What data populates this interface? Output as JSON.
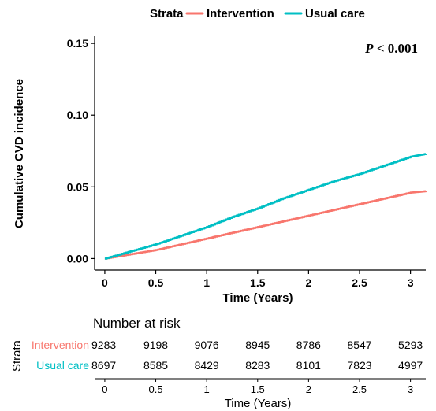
{
  "legend": {
    "title": "Strata",
    "items": [
      {
        "label": "Intervention",
        "color": "#F8766D"
      },
      {
        "label": "Usual care",
        "color": "#00BFC4"
      }
    ]
  },
  "chart_data": {
    "type": "line",
    "title": "",
    "xlabel": "Time (Years)",
    "ylabel": "Cumulative CVD incidence",
    "xlim": [
      -0.1,
      3.15
    ],
    "ylim": [
      -0.008,
      0.155
    ],
    "xticks": [
      0,
      0.5,
      1,
      1.5,
      2,
      2.5,
      3
    ],
    "xtick_labels": [
      "0",
      "0.5",
      "1",
      "1.5",
      "2",
      "2.5",
      "3"
    ],
    "yticks": [
      0,
      0.05,
      0.1,
      0.15
    ],
    "ytick_labels": [
      "0.00",
      "0.05",
      "0.10",
      "0.15"
    ],
    "annotation": "P < 0.001",
    "grid": false,
    "legend_position": "top",
    "series": [
      {
        "name": "Intervention",
        "color": "#F8766D",
        "x": [
          0,
          0.25,
          0.5,
          0.75,
          1,
          1.25,
          1.5,
          1.75,
          2,
          2.25,
          2.5,
          2.75,
          3,
          3.15
        ],
        "y": [
          0,
          0.003,
          0.006,
          0.01,
          0.014,
          0.018,
          0.022,
          0.026,
          0.03,
          0.034,
          0.038,
          0.042,
          0.046,
          0.047
        ]
      },
      {
        "name": "Usual care",
        "color": "#00BFC4",
        "x": [
          0,
          0.25,
          0.5,
          0.75,
          1,
          1.25,
          1.5,
          1.75,
          2,
          2.25,
          2.5,
          2.75,
          3,
          3.15
        ],
        "y": [
          0,
          0.005,
          0.01,
          0.016,
          0.022,
          0.029,
          0.035,
          0.042,
          0.048,
          0.054,
          0.059,
          0.065,
          0.071,
          0.073
        ]
      }
    ]
  },
  "risk_table": {
    "title": "Number at risk",
    "y_label": "Strata",
    "x_label": "Time (Years)",
    "times": [
      0,
      0.5,
      1,
      1.5,
      2,
      2.5,
      3
    ],
    "time_labels": [
      "0",
      "0.5",
      "1",
      "1.5",
      "2",
      "2.5",
      "3"
    ],
    "rows": [
      {
        "label": "Intervention",
        "color": "#F8766D",
        "values": [
          "9283",
          "9198",
          "9076",
          "8945",
          "8786",
          "8547",
          "5293"
        ]
      },
      {
        "label": "Usual care",
        "color": "#00BFC4",
        "values": [
          "8697",
          "8585",
          "8429",
          "8283",
          "8101",
          "7823",
          "4997"
        ]
      }
    ]
  }
}
